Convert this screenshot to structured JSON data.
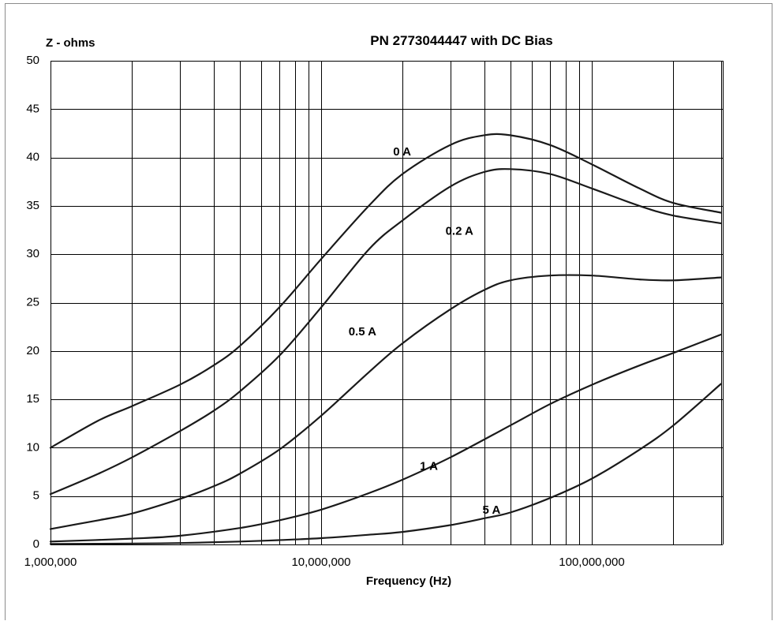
{
  "chart_data": {
    "type": "line",
    "title": "PN 2773044447 with DC Bias",
    "ylabel": "Z - ohms",
    "xlabel": "Frequency (Hz)",
    "xscale": "log",
    "xlim": [
      1000000,
      300000000
    ],
    "ylim": [
      0,
      50
    ],
    "grid": true,
    "y_ticks": [
      "0",
      "5",
      "10",
      "15",
      "20",
      "25",
      "30",
      "35",
      "40",
      "45",
      "50"
    ],
    "x_ticks": [
      {
        "value": 1000000,
        "label": "1,000,000"
      },
      {
        "value": 10000000,
        "label": "10,000,000"
      },
      {
        "value": 100000000,
        "label": "100,000,000"
      }
    ],
    "series": [
      {
        "name": "0 A",
        "x": [
          1000000,
          1500000,
          2000000,
          3000000,
          4000000,
          5000000,
          7000000,
          10000000,
          15000000,
          20000000,
          30000000,
          40000000,
          50000000,
          70000000,
          100000000,
          150000000,
          200000000,
          300000000
        ],
        "values": [
          10,
          12.8,
          14.3,
          16.5,
          18.5,
          20.5,
          24.5,
          29.5,
          35,
          38.3,
          41.3,
          42.3,
          42.3,
          41.3,
          39.3,
          36.8,
          35.3,
          34.3
        ]
      },
      {
        "name": "0.2 A",
        "x": [
          1000000,
          1500000,
          2000000,
          3000000,
          4000000,
          5000000,
          7000000,
          10000000,
          15000000,
          20000000,
          30000000,
          40000000,
          50000000,
          70000000,
          100000000,
          150000000,
          200000000,
          300000000
        ],
        "values": [
          5.2,
          7.3,
          9,
          11.7,
          13.8,
          15.8,
          19.5,
          24.5,
          30.5,
          33.5,
          37,
          38.5,
          38.8,
          38.3,
          36.8,
          35,
          34,
          33.2
        ]
      },
      {
        "name": "0.5 A",
        "x": [
          1000000,
          1500000,
          2000000,
          3000000,
          4000000,
          5000000,
          7000000,
          10000000,
          15000000,
          20000000,
          30000000,
          40000000,
          50000000,
          70000000,
          100000000,
          150000000,
          200000000,
          300000000
        ],
        "values": [
          1.6,
          2.5,
          3.2,
          4.7,
          6,
          7.3,
          9.8,
          13.3,
          17.8,
          20.8,
          24.3,
          26.3,
          27.3,
          27.8,
          27.8,
          27.4,
          27.3,
          27.6
        ]
      },
      {
        "name": "1 A",
        "x": [
          1000000,
          2000000,
          3000000,
          5000000,
          7000000,
          10000000,
          15000000,
          20000000,
          30000000,
          50000000,
          70000000,
          100000000,
          150000000,
          200000000,
          300000000
        ],
        "values": [
          0.3,
          0.6,
          0.9,
          1.7,
          2.5,
          3.6,
          5.3,
          6.7,
          9,
          12.3,
          14.5,
          16.5,
          18.5,
          19.8,
          21.7
        ]
      },
      {
        "name": "5 A",
        "x": [
          1000000,
          2000000,
          3000000,
          5000000,
          7000000,
          10000000,
          15000000,
          20000000,
          30000000,
          40000000,
          50000000,
          70000000,
          100000000,
          150000000,
          200000000,
          300000000
        ],
        "values": [
          0.05,
          0.1,
          0.15,
          0.3,
          0.45,
          0.65,
          1,
          1.3,
          2,
          2.7,
          3.3,
          4.8,
          6.8,
          9.8,
          12.3,
          16.6
        ]
      }
    ],
    "annotations": [
      {
        "text": "0 A",
        "series": "0 A"
      },
      {
        "text": "0.2 A",
        "series": "0.2 A"
      },
      {
        "text": "0.5 A",
        "series": "0.5 A"
      },
      {
        "text": "1 A",
        "series": "1 A"
      },
      {
        "text": "5 A",
        "series": "5 A"
      }
    ]
  }
}
